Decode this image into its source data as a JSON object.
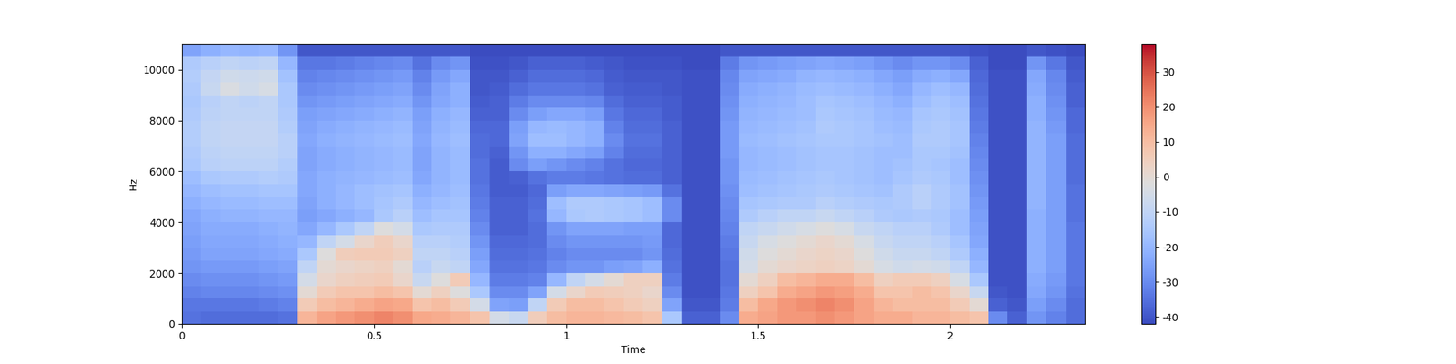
{
  "chart_data": {
    "type": "heatmap",
    "xlabel": "Time",
    "ylabel": "Hz",
    "color": "coolwarm",
    "xlim": [
      0,
      2.35
    ],
    "xticks": [
      0,
      0.5,
      1,
      1.5,
      2
    ],
    "ylim": [
      0,
      11025
    ],
    "yticks": [
      0,
      2000,
      4000,
      6000,
      8000,
      10000
    ],
    "x": [
      0,
      0.05,
      0.1,
      0.15,
      0.2,
      0.25,
      0.3,
      0.35,
      0.4,
      0.45,
      0.5,
      0.55,
      0.6,
      0.65,
      0.7,
      0.75,
      0.8,
      0.85,
      0.9,
      0.95,
      1.0,
      1.05,
      1.1,
      1.15,
      1.2,
      1.25,
      1.3,
      1.35,
      1.4,
      1.45,
      1.5,
      1.55,
      1.6,
      1.65,
      1.7,
      1.75,
      1.8,
      1.85,
      1.9,
      1.95,
      2.0,
      2.05,
      2.1,
      2.15,
      2.2,
      2.25,
      2.3,
      2.35
    ],
    "y": [
      0,
      500,
      1000,
      1500,
      2000,
      2500,
      3000,
      3500,
      4000,
      4500,
      5000,
      5500,
      6000,
      6500,
      7000,
      7500,
      8000,
      8500,
      9000,
      9500,
      10000,
      10500,
      11025
    ],
    "colorbar_range": [
      -42,
      38
    ],
    "colorbar_ticks": [
      -40,
      -30,
      -20,
      -10,
      0,
      10,
      20,
      30
    ],
    "cells": [
      [
        -35,
        -34,
        -32,
        -30,
        -28,
        -27,
        -26,
        -25,
        -24,
        -22,
        -20,
        -18,
        -15,
        -14,
        -13,
        -13,
        -14,
        -15,
        -14,
        -13,
        -14,
        -25
      ],
      [
        -36,
        -34,
        -31,
        -29,
        -27,
        -25,
        -24,
        -23,
        -22,
        -20,
        -18,
        -15,
        -12,
        -11,
        -10,
        -10,
        -11,
        -12,
        -8,
        -9,
        -12,
        -22
      ],
      [
        -36,
        -34,
        -31,
        -29,
        -27,
        -25,
        -24,
        -23,
        -21,
        -19,
        -17,
        -14,
        -11,
        -10,
        -9,
        -9,
        -10,
        -10,
        -3,
        -6,
        -10,
        -20
      ],
      [
        -36,
        -34,
        -31,
        -29,
        -27,
        -25,
        -24,
        -23,
        -21,
        -19,
        -17,
        -14,
        -11,
        -10,
        -9,
        -9,
        -10,
        -11,
        -6,
        -7,
        -11,
        -21
      ],
      [
        -36,
        -33,
        -30,
        -28,
        -26,
        -24,
        -23,
        -22,
        -20,
        -18,
        -16,
        -13,
        -11,
        -10,
        -9,
        -9,
        -10,
        -10,
        -4,
        -6,
        -10,
        -20
      ],
      [
        -35,
        -32,
        -29,
        -27,
        -25,
        -23,
        -22,
        -21,
        -20,
        -18,
        -16,
        -14,
        -13,
        -12,
        -12,
        -13,
        -14,
        -15,
        -15,
        -17,
        -20,
        -28
      ],
      [
        12,
        6,
        0,
        -5,
        -10,
        -15,
        -20,
        -24,
        -26,
        -25,
        -24,
        -24,
        -25,
        -25,
        -24,
        -25,
        -26,
        -28,
        -30,
        -32,
        -34,
        -40
      ],
      [
        16,
        10,
        6,
        2,
        0,
        -2,
        -10,
        -20,
        -24,
        -22,
        -22,
        -22,
        -23,
        -23,
        -22,
        -23,
        -25,
        -27,
        -29,
        -31,
        -34,
        -40
      ],
      [
        18,
        12,
        8,
        4,
        2,
        5,
        -5,
        -15,
        -22,
        -20,
        -20,
        -21,
        -22,
        -22,
        -21,
        -22,
        -24,
        -26,
        -28,
        -30,
        -33,
        -40
      ],
      [
        20,
        14,
        8,
        5,
        3,
        6,
        2,
        -10,
        -20,
        -18,
        -18,
        -20,
        -21,
        -21,
        -20,
        -21,
        -23,
        -25,
        -27,
        -29,
        -32,
        -40
      ],
      [
        22,
        16,
        10,
        6,
        4,
        6,
        5,
        -2,
        -15,
        -16,
        -17,
        -19,
        -20,
        -20,
        -19,
        -20,
        -22,
        -24,
        -26,
        -28,
        -31,
        -40
      ],
      [
        20,
        15,
        8,
        2,
        0,
        4,
        2,
        -5,
        -12,
        -14,
        -16,
        -18,
        -19,
        -19,
        -18,
        -19,
        -21,
        -23,
        -25,
        -27,
        -30,
        -40
      ],
      [
        15,
        8,
        0,
        -8,
        -12,
        -10,
        -12,
        -15,
        -18,
        -20,
        -22,
        -24,
        -25,
        -25,
        -24,
        -25,
        -26,
        -28,
        -30,
        -32,
        -35,
        -40
      ],
      [
        14,
        10,
        4,
        -2,
        -8,
        -10,
        -12,
        -14,
        -16,
        -18,
        -20,
        -21,
        -21,
        -21,
        -20,
        -21,
        -22,
        -24,
        -25,
        -27,
        -30,
        -40
      ],
      [
        12,
        6,
        -2,
        6,
        -10,
        -12,
        -13,
        -14,
        -16,
        -17,
        -18,
        -19,
        -19,
        -19,
        -18,
        -19,
        -20,
        -22,
        -22,
        -24,
        -28,
        -40
      ],
      [
        8,
        -5,
        -15,
        -20,
        -24,
        -26,
        -28,
        -30,
        -32,
        -33,
        -34,
        -35,
        -35,
        -36,
        -36,
        -37,
        -38,
        -39,
        -40,
        -40,
        -41,
        -42
      ],
      [
        -5,
        -25,
        -30,
        -33,
        -35,
        -36,
        -37,
        -38,
        -38,
        -38,
        -39,
        -39,
        -39,
        -38,
        -37,
        -37,
        -38,
        -38,
        -39,
        -40,
        -41,
        -42
      ],
      [
        -8,
        -26,
        -30,
        -33,
        -35,
        -36,
        -37,
        -38,
        -38,
        -38,
        -39,
        -38,
        -30,
        -28,
        -25,
        -26,
        -30,
        -33,
        -36,
        -38,
        -40,
        -42
      ],
      [
        5,
        -10,
        -25,
        -32,
        -34,
        -35,
        -36,
        -36,
        -35,
        -36,
        -37,
        -35,
        -26,
        -22,
        -18,
        -20,
        -26,
        -30,
        -34,
        -36,
        -38,
        -42
      ],
      [
        10,
        6,
        -5,
        -20,
        -30,
        -32,
        -30,
        -28,
        -20,
        -18,
        -26,
        -33,
        -28,
        -22,
        -18,
        -19,
        -24,
        -30,
        -34,
        -36,
        -38,
        -42
      ],
      [
        12,
        10,
        2,
        -10,
        -28,
        -30,
        -28,
        -25,
        -15,
        -14,
        -24,
        -33,
        -30,
        -24,
        -20,
        -20,
        -24,
        -30,
        -34,
        -36,
        -38,
        -42
      ],
      [
        12,
        10,
        6,
        -5,
        -28,
        -30,
        -28,
        -25,
        -14,
        -14,
        -24,
        -34,
        -32,
        -26,
        -22,
        -22,
        -26,
        -31,
        -35,
        -37,
        -39,
        -42
      ],
      [
        11,
        8,
        5,
        0,
        -26,
        -30,
        -28,
        -25,
        -15,
        -15,
        -25,
        -35,
        -35,
        -32,
        -30,
        -32,
        -34,
        -36,
        -38,
        -39,
        -40,
        -42
      ],
      [
        10,
        6,
        4,
        4,
        -25,
        -30,
        -28,
        -26,
        -16,
        -16,
        -26,
        -36,
        -37,
        -36,
        -35,
        -36,
        -37,
        -38,
        -39,
        -40,
        -41,
        -42
      ],
      [
        8,
        4,
        2,
        4,
        -22,
        -28,
        -27,
        -26,
        -18,
        -18,
        -27,
        -36,
        -37,
        -36,
        -35,
        -36,
        -37,
        -38,
        -39,
        -40,
        -41,
        -42
      ],
      [
        -15,
        -25,
        -30,
        -33,
        -35,
        -36,
        -37,
        -37,
        -30,
        -30,
        -35,
        -38,
        -38,
        -38,
        -38,
        -38,
        -39,
        -39,
        -40,
        -40,
        -41,
        -42
      ],
      [
        -38,
        -40,
        -41,
        -41,
        -41,
        -41,
        -41,
        -41,
        -41,
        -41,
        -41,
        -41,
        -41,
        -41,
        -41,
        -41,
        -41,
        -41,
        -41,
        -41,
        -42,
        -42
      ],
      [
        -38,
        -40,
        -41,
        -41,
        -41,
        -41,
        -41,
        -41,
        -41,
        -41,
        -41,
        -41,
        -41,
        -41,
        -41,
        -41,
        -41,
        -41,
        -41,
        -41,
        -42,
        -42
      ],
      [
        -30,
        -33,
        -34,
        -35,
        -35,
        -34,
        -33,
        -32,
        -31,
        -30,
        -29,
        -28,
        -28,
        -27,
        -27,
        -27,
        -28,
        -29,
        -30,
        -31,
        -33,
        -40
      ],
      [
        14,
        10,
        4,
        0,
        -5,
        -6,
        -8,
        -10,
        -14,
        -16,
        -18,
        -19,
        -20,
        -20,
        -19,
        -20,
        -21,
        -22,
        -23,
        -25,
        -28,
        -40
      ],
      [
        16,
        15,
        8,
        4,
        0,
        -2,
        -4,
        -8,
        -12,
        -15,
        -17,
        -18,
        -19,
        -19,
        -18,
        -19,
        -20,
        -21,
        -22,
        -24,
        -27,
        -40
      ],
      [
        18,
        18,
        14,
        10,
        2,
        0,
        -2,
        -6,
        -10,
        -14,
        -16,
        -17,
        -18,
        -18,
        -17,
        -18,
        -19,
        -20,
        -21,
        -23,
        -26,
        -40
      ],
      [
        18,
        20,
        16,
        12,
        3,
        2,
        0,
        -4,
        -10,
        -14,
        -15,
        -16,
        -17,
        -17,
        -16,
        -17,
        -18,
        -18,
        -19,
        -21,
        -25,
        -40
      ],
      [
        20,
        22,
        18,
        14,
        4,
        3,
        2,
        -2,
        -8,
        -12,
        -14,
        -15,
        -16,
        -16,
        -15,
        -14,
        -15,
        -16,
        -18,
        -20,
        -24,
        -40
      ],
      [
        18,
        20,
        17,
        14,
        3,
        2,
        0,
        -4,
        -10,
        -13,
        -15,
        -16,
        -16,
        -16,
        -15,
        -15,
        -16,
        -17,
        -19,
        -21,
        -25,
        -40
      ],
      [
        16,
        16,
        14,
        10,
        0,
        -2,
        -4,
        -8,
        -12,
        -14,
        -16,
        -17,
        -17,
        -17,
        -16,
        -16,
        -17,
        -18,
        -20,
        -22,
        -26,
        -40
      ],
      [
        14,
        12,
        8,
        4,
        -4,
        -6,
        -8,
        -10,
        -14,
        -15,
        -17,
        -18,
        -18,
        -18,
        -17,
        -18,
        -19,
        -20,
        -22,
        -24,
        -28,
        -40
      ],
      [
        14,
        10,
        8,
        6,
        -6,
        -8,
        -10,
        -12,
        -15,
        -14,
        -14,
        -16,
        -17,
        -18,
        -18,
        -19,
        -20,
        -22,
        -24,
        -26,
        -30,
        -40
      ],
      [
        12,
        10,
        10,
        6,
        -5,
        -8,
        -10,
        -12,
        -14,
        -12,
        -12,
        -14,
        -15,
        -15,
        -14,
        -15,
        -16,
        -18,
        -20,
        -23,
        -28,
        -40
      ],
      [
        12,
        10,
        8,
        4,
        -6,
        -10,
        -12,
        -14,
        -15,
        -14,
        -14,
        -15,
        -16,
        -15,
        -14,
        -14,
        -15,
        -16,
        -18,
        -22,
        -28,
        -40
      ],
      [
        10,
        6,
        2,
        -4,
        -10,
        -14,
        -16,
        -18,
        -18,
        -17,
        -17,
        -18,
        -18,
        -17,
        -16,
        -16,
        -17,
        -18,
        -20,
        -24,
        -30,
        -40
      ],
      [
        8,
        0,
        -8,
        -15,
        -20,
        -22,
        -24,
        -25,
        -26,
        -27,
        -28,
        -29,
        -30,
        -31,
        -32,
        -33,
        -34,
        -35,
        -36,
        -37,
        -38,
        -41
      ],
      [
        -30,
        -38,
        -40,
        -41,
        -41,
        -41,
        -41,
        -41,
        -41,
        -41,
        -41,
        -41,
        -41,
        -41,
        -41,
        -41,
        -41,
        -41,
        -41,
        -41,
        -42,
        -42
      ],
      [
        -38,
        -40,
        -41,
        -41,
        -41,
        -41,
        -41,
        -41,
        -41,
        -41,
        -41,
        -41,
        -41,
        -41,
        -41,
        -41,
        -41,
        -41,
        -41,
        -41,
        -42,
        -42
      ],
      [
        -28,
        -26,
        -24,
        -23,
        -22,
        -22,
        -22,
        -22,
        -22,
        -21,
        -21,
        -21,
        -21,
        -21,
        -21,
        -21,
        -22,
        -22,
        -23,
        -24,
        -28,
        -40
      ],
      [
        -32,
        -30,
        -28,
        -27,
        -26,
        -26,
        -26,
        -26,
        -26,
        -26,
        -26,
        -26,
        -26,
        -26,
        -26,
        -27,
        -28,
        -29,
        -30,
        -31,
        -34,
        -41
      ],
      [
        -36,
        -36,
        -35,
        -34,
        -34,
        -34,
        -34,
        -34,
        -35,
        -35,
        -35,
        -36,
        -36,
        -36,
        -36,
        -37,
        -37,
        -38,
        -38,
        -39,
        -40,
        -42
      ]
    ]
  }
}
